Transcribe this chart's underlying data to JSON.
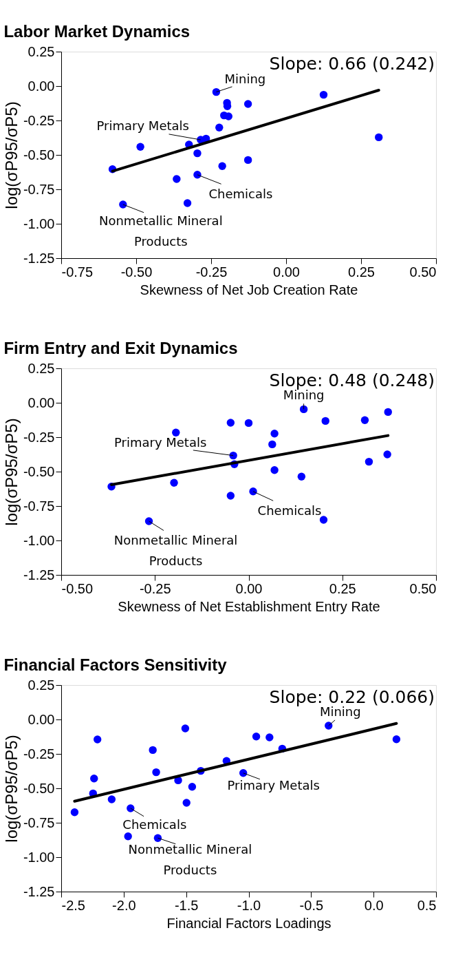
{
  "chart_data": [
    {
      "type": "scatter",
      "title": "Labor Market Dynamics",
      "xlabel": "Skewness of Net Job Creation Rate",
      "ylabel": "log(σP95/σP5)",
      "xlim": [
        -0.75,
        0.5
      ],
      "ylim": [
        -1.25,
        0.25
      ],
      "xticks": [
        {
          "value": -0.75,
          "label": "-0.75"
        },
        {
          "value": -0.5,
          "label": "-0.50"
        },
        {
          "value": -0.25,
          "label": "-0.25"
        },
        {
          "value": 0,
          "label": "0.00"
        },
        {
          "value": 0.25,
          "label": "0.25"
        },
        {
          "value": 0.5,
          "label": "0.50"
        }
      ],
      "yticks": [
        {
          "value": 0.25,
          "label": "0.25"
        },
        {
          "value": 0,
          "label": "0.00"
        },
        {
          "value": -0.25,
          "label": "-0.25"
        },
        {
          "value": -0.5,
          "label": "-0.50"
        },
        {
          "value": -0.75,
          "label": "-0.75"
        },
        {
          "value": -1,
          "label": "-1.00"
        },
        {
          "value": -1.25,
          "label": "-1.25"
        }
      ],
      "grid": false,
      "series": [
        {
          "marker": "circle",
          "color": "#0000ff",
          "x": [
            -0.233,
            0.125,
            -0.197,
            -0.196,
            -0.127,
            -0.207,
            -0.192,
            -0.223,
            -0.285,
            -0.267,
            0.309,
            -0.486,
            -0.324,
            -0.296,
            -0.127,
            -0.213,
            -0.579,
            -0.296,
            -0.365,
            -0.329,
            -0.544
          ],
          "values": [
            -0.043,
            -0.063,
            -0.122,
            -0.146,
            -0.13,
            -0.213,
            -0.22,
            -0.301,
            -0.39,
            -0.382,
            -0.372,
            -0.441,
            -0.425,
            -0.488,
            -0.537,
            -0.581,
            -0.604,
            -0.644,
            -0.675,
            -0.85,
            -0.86
          ]
        },
        {
          "type": "line",
          "color": "#000000",
          "x": [
            -0.579,
            0.309
          ],
          "values": [
            -0.618,
            -0.03
          ]
        }
      ],
      "annotations": [
        "Slope: 0.66 (0.242)",
        {
          "text": "Mining",
          "x": -0.233,
          "y": -0.043
        },
        {
          "text": "Primary Metals",
          "x": -0.285,
          "y": -0.39
        },
        {
          "text": "Chemicals",
          "x": -0.296,
          "y": -0.644
        },
        {
          "text": "Nonmetallic Mineral Products",
          "x": -0.544,
          "y": -0.86
        }
      ]
    },
    {
      "type": "scatter",
      "title": "Firm Entry and Exit Dynamics",
      "xlabel": "Skewness of Net Establishment Entry Rate",
      "ylabel": "log(σP95/σP5)",
      "xlim": [
        -0.5,
        0.5
      ],
      "ylim": [
        -1.25,
        0.25
      ],
      "xticks": [
        {
          "value": -0.5,
          "label": "-0.50"
        },
        {
          "value": -0.25,
          "label": "-0.25"
        },
        {
          "value": 0,
          "label": "0.00"
        },
        {
          "value": 0.25,
          "label": "0.25"
        },
        {
          "value": 0.5,
          "label": "0.50"
        }
      ],
      "yticks": [
        {
          "value": 0.25,
          "label": "0.25"
        },
        {
          "value": 0,
          "label": "0.00"
        },
        {
          "value": -0.25,
          "label": "-0.25"
        },
        {
          "value": -0.5,
          "label": "-0.50"
        },
        {
          "value": -0.75,
          "label": "-0.75"
        },
        {
          "value": -1,
          "label": "-1.00"
        },
        {
          "value": -1.25,
          "label": "-1.25"
        }
      ],
      "grid": false,
      "series": [
        {
          "marker": "circle",
          "color": "#0000ff",
          "x": [
            0.147,
            0.372,
            -0.048,
            0.0,
            0.205,
            0.31,
            -0.194,
            0.069,
            0.063,
            -0.041,
            -0.038,
            0.37,
            0.321,
            0.069,
            0.141,
            -0.199,
            -0.366,
            0.012,
            -0.048,
            0.2,
            -0.266
          ],
          "values": [
            -0.047,
            -0.067,
            -0.145,
            -0.147,
            -0.132,
            -0.126,
            -0.216,
            -0.224,
            -0.302,
            -0.383,
            -0.446,
            -0.375,
            -0.428,
            -0.489,
            -0.536,
            -0.581,
            -0.609,
            -0.644,
            -0.675,
            -0.85,
            -0.86
          ]
        },
        {
          "type": "line",
          "color": "#000000",
          "x": [
            -0.366,
            0.372
          ],
          "values": [
            -0.595,
            -0.238
          ]
        }
      ],
      "annotations": [
        "Slope: 0.48 (0.248)",
        {
          "text": "Mining",
          "x": 0.147,
          "y": -0.047
        },
        {
          "text": "Primary Metals",
          "x": -0.041,
          "y": -0.383
        },
        {
          "text": "Chemicals",
          "x": 0.012,
          "y": -0.644
        },
        {
          "text": "Nonmetallic Mineral Products",
          "x": -0.266,
          "y": -0.86
        }
      ]
    },
    {
      "type": "scatter",
      "title": "Financial Factors Sensitivity",
      "xlabel": "Financial Factors Loadings",
      "ylabel": "log(σP95/σP5)",
      "xlim": [
        -2.5,
        0.5
      ],
      "ylim": [
        -1.25,
        0.25
      ],
      "xticks": [
        -2.5,
        {
          "value": -2,
          "label": "-2.0"
        },
        -1.5,
        {
          "value": -1,
          "label": "-1.0"
        },
        -0.5,
        {
          "value": 0,
          "label": "0.0"
        },
        0.5
      ],
      "yticks": [
        {
          "value": 0.25,
          "label": "0.25"
        },
        {
          "value": 0,
          "label": "0.00"
        },
        {
          "value": -0.25,
          "label": "-0.25"
        },
        {
          "value": -0.5,
          "label": "-0.50"
        },
        {
          "value": -0.75,
          "label": "-0.75"
        },
        {
          "value": -1,
          "label": "-1.00"
        },
        {
          "value": -1.25,
          "label": "-1.25"
        }
      ],
      "grid": false,
      "series": [
        {
          "marker": "circle",
          "color": "#0000ff",
          "x": [
            -0.36,
            -1.507,
            -2.21,
            -0.939,
            -0.833,
            0.183,
            -0.731,
            -1.767,
            -1.177,
            -1.74,
            -1.383,
            -1.043,
            -2.237,
            -1.564,
            -1.452,
            -2.245,
            -2.096,
            -1.497,
            -1.945,
            -2.393,
            -1.965,
            -1.727
          ],
          "values": [
            -0.045,
            -0.065,
            -0.145,
            -0.124,
            -0.13,
            -0.144,
            -0.212,
            -0.222,
            -0.301,
            -0.383,
            -0.373,
            -0.389,
            -0.429,
            -0.442,
            -0.489,
            -0.537,
            -0.58,
            -0.605,
            -0.645,
            -0.674,
            -0.849,
            -0.861
          ]
        },
        {
          "type": "line",
          "color": "#000000",
          "x": [
            -2.393,
            0.183
          ],
          "values": [
            -0.594,
            -0.029
          ]
        }
      ],
      "annotations": [
        "Slope: 0.22 (0.066)",
        {
          "text": "Mining",
          "x": -0.36,
          "y": -0.045
        },
        {
          "text": "Primary Metals",
          "x": -1.043,
          "y": -0.389
        },
        {
          "text": "Chemicals",
          "x": -1.945,
          "y": -0.645
        },
        {
          "text": "Nonmetallic Mineral Products",
          "x": -1.727,
          "y": -0.861
        }
      ]
    }
  ]
}
